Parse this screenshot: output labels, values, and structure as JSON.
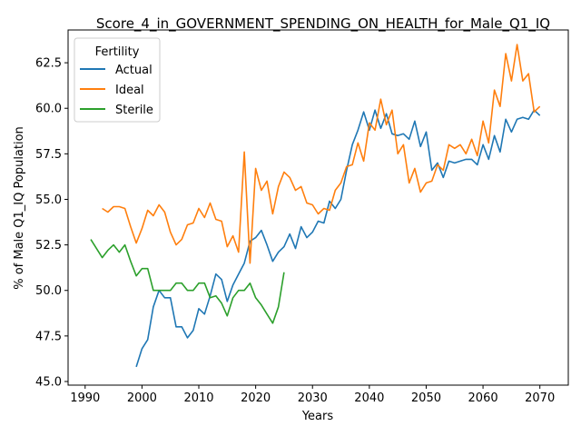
{
  "chart_data": {
    "type": "line",
    "title": "Score_4_in_GOVERNMENT_SPENDING_ON_HEALTH_for_Male_Q1_IQ",
    "xlabel": "Years",
    "ylabel": "% of Male Q1_IQ Population",
    "xlim": [
      1987,
      2075
    ],
    "ylim": [
      44.8,
      64.3
    ],
    "xticks": [
      1990,
      2000,
      2010,
      2020,
      2030,
      2040,
      2050,
      2060,
      2070
    ],
    "yticks": [
      45.0,
      47.5,
      50.0,
      52.5,
      55.0,
      57.5,
      60.0,
      62.5
    ],
    "grid": false,
    "legend": {
      "title": "Fertility",
      "position": "top-left"
    },
    "series": [
      {
        "name": "Actual",
        "color": "#1f77b4",
        "x": [
          1999,
          2000,
          2001,
          2002,
          2003,
          2004,
          2005,
          2006,
          2007,
          2008,
          2009,
          2010,
          2011,
          2012,
          2013,
          2014,
          2015,
          2016,
          2017,
          2018,
          2019,
          2020,
          2021,
          2022,
          2023,
          2024,
          2025,
          2026,
          2027,
          2028,
          2029,
          2030,
          2031,
          2032,
          2033,
          2034,
          2035,
          2036,
          2037,
          2038,
          2039,
          2040,
          2041,
          2042,
          2043,
          2044,
          2045,
          2046,
          2047,
          2048,
          2049,
          2050,
          2051,
          2052,
          2053,
          2054,
          2055,
          2056,
          2057,
          2058,
          2059,
          2060,
          2061,
          2062,
          2063,
          2064,
          2065,
          2066,
          2067,
          2068,
          2069,
          2070
        ],
        "y": [
          45.8,
          46.8,
          47.3,
          49.1,
          50.0,
          49.6,
          49.6,
          48.0,
          48.0,
          47.4,
          47.8,
          49.0,
          48.7,
          49.7,
          50.9,
          50.6,
          49.4,
          50.3,
          50.9,
          51.5,
          52.7,
          52.9,
          53.3,
          52.5,
          51.6,
          52.1,
          52.4,
          53.1,
          52.3,
          53.5,
          52.9,
          53.2,
          53.8,
          53.7,
          54.9,
          54.5,
          55.0,
          56.6,
          58.0,
          58.8,
          59.8,
          58.8,
          59.9,
          58.9,
          59.7,
          58.6,
          58.5,
          58.6,
          58.3,
          59.3,
          57.9,
          58.7,
          56.6,
          57.0,
          56.2,
          57.1,
          57.0,
          57.1,
          57.2,
          57.2,
          56.9,
          58.0,
          57.2,
          58.5,
          57.6,
          59.4,
          58.7,
          59.4,
          59.5,
          59.4,
          59.9,
          59.6
        ]
      },
      {
        "name": "Ideal",
        "color": "#ff7f0e",
        "x": [
          1993,
          1994,
          1995,
          1996,
          1997,
          1998,
          1999,
          2000,
          2001,
          2002,
          2003,
          2004,
          2005,
          2006,
          2007,
          2008,
          2009,
          2010,
          2011,
          2012,
          2013,
          2014,
          2015,
          2016,
          2017,
          2018,
          2019,
          2020,
          2021,
          2022,
          2023,
          2024,
          2025,
          2026,
          2027,
          2028,
          2029,
          2030,
          2031,
          2032,
          2033,
          2034,
          2035,
          2036,
          2037,
          2038,
          2039,
          2040,
          2041,
          2042,
          2043,
          2044,
          2045,
          2046,
          2047,
          2048,
          2049,
          2050,
          2051,
          2052,
          2053,
          2054,
          2055,
          2056,
          2057,
          2058,
          2059,
          2060,
          2061,
          2062,
          2063,
          2064,
          2065,
          2066,
          2067,
          2068,
          2069,
          2070
        ],
        "y": [
          54.5,
          54.3,
          54.6,
          54.6,
          54.5,
          53.5,
          52.6,
          53.4,
          54.4,
          54.1,
          54.7,
          54.3,
          53.2,
          52.5,
          52.8,
          53.6,
          53.7,
          54.5,
          54.0,
          54.8,
          53.9,
          53.8,
          52.4,
          53.0,
          52.1,
          57.6,
          51.5,
          56.7,
          55.5,
          56.0,
          54.2,
          55.7,
          56.5,
          56.2,
          55.5,
          55.7,
          54.8,
          54.7,
          54.2,
          54.5,
          54.4,
          55.5,
          55.9,
          56.8,
          56.9,
          58.1,
          57.1,
          59.2,
          58.8,
          60.5,
          59.1,
          59.9,
          57.5,
          58.0,
          55.9,
          56.7,
          55.4,
          55.9,
          56.0,
          56.9,
          56.6,
          58.0,
          57.8,
          58.0,
          57.5,
          58.3,
          57.4,
          59.3,
          58.1,
          61.0,
          60.1,
          63.0,
          61.5,
          63.5,
          61.5,
          61.9,
          59.8,
          60.1
        ]
      },
      {
        "name": "Sterile",
        "color": "#2ca02c",
        "x": [
          1991,
          1992,
          1993,
          1994,
          1995,
          1996,
          1997,
          1998,
          1999,
          2000,
          2001,
          2002,
          2003,
          2004,
          2005,
          2006,
          2007,
          2008,
          2009,
          2010,
          2011,
          2012,
          2013,
          2014,
          2015,
          2016,
          2017,
          2018,
          2019,
          2020,
          2021,
          2022,
          2023,
          2024,
          2025
        ],
        "y": [
          52.8,
          52.3,
          51.8,
          52.2,
          52.5,
          52.1,
          52.5,
          51.6,
          50.8,
          51.2,
          51.2,
          50.0,
          50.0,
          50.0,
          50.0,
          50.4,
          50.4,
          50.0,
          50.0,
          50.4,
          50.4,
          49.6,
          49.7,
          49.3,
          48.6,
          49.6,
          50.0,
          50.0,
          50.4,
          49.6,
          49.2,
          48.7,
          48.2,
          49.1,
          51.0
        ]
      }
    ]
  }
}
